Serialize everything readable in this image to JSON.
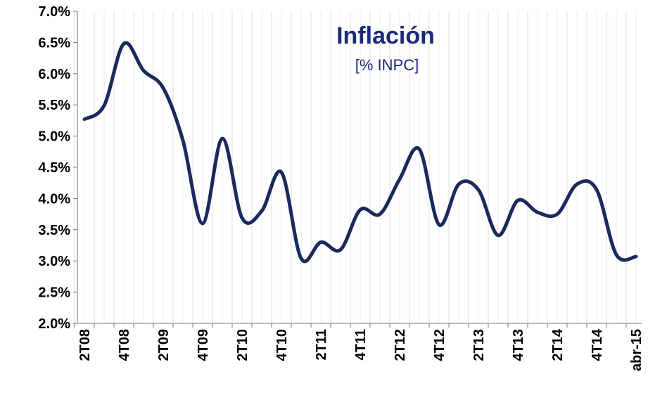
{
  "chart_data": {
    "type": "line",
    "title": "Inflación",
    "subtitle": "[% INPC]",
    "categories": [
      "2T08",
      null,
      "4T08",
      null,
      "2T09",
      null,
      "4T09",
      null,
      "2T10",
      null,
      "4T10",
      null,
      "2T11",
      null,
      "4T11",
      null,
      "2T12",
      null,
      "4T12",
      null,
      "2T13",
      null,
      "4T13",
      null,
      "2T14",
      null,
      "4T14",
      null,
      "abr-15"
    ],
    "series": [
      {
        "name": "Inflación",
        "color": "#1b2a5c",
        "values": [
          5.27,
          5.49,
          6.48,
          6.05,
          5.77,
          4.93,
          3.6,
          4.96,
          3.69,
          3.8,
          4.42,
          3.04,
          3.3,
          3.18,
          3.82,
          3.75,
          4.31,
          4.79,
          3.58,
          4.23,
          4.14,
          3.41,
          3.97,
          3.78,
          3.75,
          4.23,
          4.14,
          3.1,
          3.07
        ]
      }
    ],
    "ylim": [
      2,
      7
    ],
    "yticks": [
      {
        "value": 2,
        "label": "2.0%"
      },
      {
        "value": 2.5,
        "label": "2.5%"
      },
      {
        "value": 3,
        "label": "3.0%"
      },
      {
        "value": 3.5,
        "label": "3.5%"
      },
      {
        "value": 4,
        "label": "4.0%"
      },
      {
        "value": 4.5,
        "label": "4.5%"
      },
      {
        "value": 5,
        "label": "5.0%"
      },
      {
        "value": 5.5,
        "label": "5.5%"
      },
      {
        "value": 6,
        "label": "6.0%"
      },
      {
        "value": 6.5,
        "label": "6.5%"
      },
      {
        "value": 7,
        "label": "7.0%"
      }
    ],
    "grid": true
  }
}
